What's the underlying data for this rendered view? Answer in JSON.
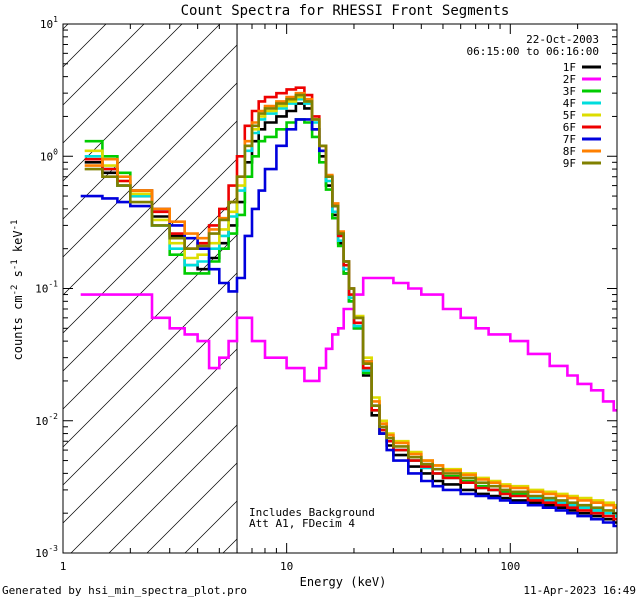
{
  "chart_data": {
    "type": "line",
    "title": "Count Spectra for RHESSI Front Segments",
    "xlabel": "Energy (keV)",
    "ylabel_parts": {
      "base": "counts cm",
      "sup1": "-2",
      "mid": " s",
      "sup2": "-1",
      "unit": " keV",
      "sup3": "-1"
    },
    "x_scale": "log",
    "y_scale": "log",
    "xlim": [
      1,
      300
    ],
    "ylim": [
      0.001,
      10
    ],
    "x_ticks": [
      {
        "value": 1,
        "label": "1"
      },
      {
        "value": 10,
        "label": "10"
      },
      {
        "value": 100,
        "label": "100"
      }
    ],
    "y_ticks": [
      {
        "value": 0.001,
        "base": "10",
        "exp": "-3"
      },
      {
        "value": 0.01,
        "base": "10",
        "exp": "-2"
      },
      {
        "value": 0.1,
        "base": "10",
        "exp": "-1"
      },
      {
        "value": 1,
        "base": "10",
        "exp": "0"
      },
      {
        "value": 10,
        "base": "10",
        "exp": "1"
      }
    ],
    "legend": {
      "placement": "top-right",
      "date": "22-Oct-2003",
      "time_range": "06:15:00 to 06:16:00"
    },
    "hatched_region_xmax": 6,
    "annotations": [
      "Includes Background",
      "Att A1, FDecim 4"
    ],
    "footer_left": "Generated by hsi_min_spectra_plot.pro",
    "footer_right": "11-Apr-2023 16:49",
    "series": [
      {
        "name": "1F",
        "color": "#000000",
        "x": [
          1.25,
          1.5,
          1.75,
          2,
          2.5,
          3,
          3.5,
          4,
          4.5,
          5,
          5.5,
          6,
          6.5,
          7,
          7.5,
          8,
          9,
          10,
          11,
          12,
          13,
          14,
          15,
          16,
          17,
          18,
          19,
          20,
          22,
          24,
          26,
          28,
          30,
          35,
          40,
          45,
          50,
          60,
          70,
          80,
          90,
          100,
          120,
          140,
          160,
          180,
          200,
          230,
          260,
          290
        ],
        "y": [
          0.9,
          0.75,
          0.6,
          0.5,
          0.35,
          0.25,
          0.15,
          0.14,
          0.17,
          0.22,
          0.3,
          0.45,
          0.9,
          1.3,
          1.6,
          1.8,
          2.0,
          2.2,
          2.5,
          2.3,
          1.6,
          1.0,
          0.6,
          0.36,
          0.22,
          0.13,
          0.08,
          0.05,
          0.022,
          0.011,
          0.008,
          0.0065,
          0.0055,
          0.0045,
          0.004,
          0.0035,
          0.0033,
          0.003,
          0.0028,
          0.0027,
          0.0026,
          0.0025,
          0.0024,
          0.0023,
          0.0022,
          0.0021,
          0.002,
          0.0019,
          0.0018,
          0.0017
        ]
      },
      {
        "name": "2F",
        "color": "#ff00ff",
        "x": [
          1.2,
          1.5,
          2,
          2.5,
          3,
          3.5,
          4,
          4.5,
          5,
          5.5,
          6,
          7,
          8,
          10,
          12,
          13,
          14,
          15,
          16,
          17,
          18,
          20,
          22,
          25,
          30,
          35,
          40,
          50,
          60,
          70,
          80,
          100,
          120,
          150,
          180,
          200,
          230,
          260,
          290
        ],
        "y": [
          0.09,
          0.09,
          0.09,
          0.06,
          0.05,
          0.045,
          0.04,
          0.025,
          0.03,
          0.04,
          0.06,
          0.04,
          0.03,
          0.025,
          0.02,
          0.02,
          0.025,
          0.035,
          0.045,
          0.05,
          0.07,
          0.09,
          0.12,
          0.12,
          0.11,
          0.1,
          0.09,
          0.07,
          0.06,
          0.05,
          0.045,
          0.04,
          0.032,
          0.026,
          0.022,
          0.019,
          0.017,
          0.014,
          0.012
        ]
      },
      {
        "name": "3F",
        "color": "#00cc00",
        "x": [
          1.25,
          1.5,
          1.75,
          2,
          2.5,
          3,
          3.5,
          4,
          4.5,
          5,
          5.5,
          6,
          6.5,
          7,
          7.5,
          8,
          9,
          10,
          11,
          12,
          13,
          14,
          15,
          16,
          17,
          18,
          19,
          20,
          22,
          24,
          26,
          28,
          30,
          35,
          40,
          45,
          50,
          60,
          70,
          80,
          90,
          100,
          120,
          140,
          160,
          180,
          200,
          230,
          260,
          290
        ],
        "y": [
          1.3,
          1.0,
          0.75,
          0.55,
          0.3,
          0.18,
          0.13,
          0.13,
          0.16,
          0.2,
          0.26,
          0.36,
          0.7,
          1.0,
          1.3,
          1.4,
          1.6,
          1.8,
          1.9,
          1.8,
          1.4,
          0.9,
          0.56,
          0.34,
          0.21,
          0.13,
          0.08,
          0.05,
          0.023,
          0.012,
          0.0085,
          0.007,
          0.006,
          0.005,
          0.0045,
          0.004,
          0.0038,
          0.0035,
          0.0032,
          0.003,
          0.0029,
          0.0028,
          0.0026,
          0.0025,
          0.0024,
          0.0023,
          0.0022,
          0.0021,
          0.002,
          0.0019
        ]
      },
      {
        "name": "4F",
        "color": "#00dddd",
        "x": [
          1.25,
          1.5,
          1.75,
          2,
          2.5,
          3,
          3.5,
          4,
          4.5,
          5,
          5.5,
          6,
          6.5,
          7,
          7.5,
          8,
          9,
          10,
          11,
          12,
          13,
          14,
          15,
          16,
          17,
          18,
          19,
          20,
          22,
          24,
          26,
          28,
          30,
          35,
          40,
          45,
          50,
          60,
          70,
          80,
          90,
          100,
          120,
          140,
          160,
          180,
          200,
          230,
          260,
          290
        ],
        "y": [
          1.0,
          0.8,
          0.6,
          0.5,
          0.3,
          0.2,
          0.15,
          0.16,
          0.2,
          0.25,
          0.35,
          0.55,
          1.1,
          1.5,
          1.9,
          2.1,
          2.3,
          2.5,
          2.7,
          2.5,
          1.8,
          1.1,
          0.65,
          0.38,
          0.23,
          0.14,
          0.085,
          0.052,
          0.024,
          0.012,
          0.0085,
          0.007,
          0.006,
          0.005,
          0.0044,
          0.004,
          0.0037,
          0.0034,
          0.0031,
          0.003,
          0.0028,
          0.0027,
          0.0026,
          0.0025,
          0.0024,
          0.0023,
          0.0022,
          0.0021,
          0.002,
          0.0019
        ]
      },
      {
        "name": "5F",
        "color": "#dddd00",
        "x": [
          1.25,
          1.5,
          1.75,
          2,
          2.5,
          3,
          3.5,
          4,
          4.5,
          5,
          5.5,
          6,
          6.5,
          7,
          7.5,
          8,
          9,
          10,
          11,
          12,
          13,
          14,
          15,
          16,
          17,
          18,
          19,
          20,
          22,
          24,
          26,
          28,
          30,
          35,
          40,
          45,
          50,
          60,
          70,
          80,
          90,
          100,
          120,
          140,
          160,
          180,
          200,
          230,
          260,
          290
        ],
        "y": [
          1.1,
          0.85,
          0.65,
          0.52,
          0.33,
          0.22,
          0.17,
          0.18,
          0.22,
          0.28,
          0.38,
          0.6,
          1.2,
          1.6,
          2.0,
          2.2,
          2.4,
          2.6,
          2.8,
          2.6,
          1.9,
          1.2,
          0.7,
          0.42,
          0.26,
          0.16,
          0.1,
          0.062,
          0.03,
          0.015,
          0.01,
          0.008,
          0.007,
          0.0058,
          0.005,
          0.0046,
          0.0043,
          0.004,
          0.0037,
          0.0035,
          0.0033,
          0.0032,
          0.003,
          0.0029,
          0.0028,
          0.0027,
          0.0026,
          0.0025,
          0.0024,
          0.0023
        ]
      },
      {
        "name": "6F",
        "color": "#ee0000",
        "x": [
          1.25,
          1.5,
          1.75,
          2,
          2.5,
          3,
          3.5,
          4,
          4.5,
          5,
          5.5,
          6,
          6.5,
          7,
          7.5,
          8,
          9,
          10,
          11,
          12,
          13,
          14,
          15,
          16,
          17,
          18,
          19,
          20,
          22,
          24,
          26,
          28,
          30,
          35,
          40,
          45,
          50,
          60,
          70,
          80,
          90,
          100,
          120,
          140,
          160,
          180,
          200,
          230,
          260,
          290
        ],
        "y": [
          0.95,
          0.8,
          0.65,
          0.55,
          0.38,
          0.26,
          0.2,
          0.22,
          0.3,
          0.4,
          0.6,
          1.0,
          1.7,
          2.2,
          2.6,
          2.8,
          3.0,
          3.2,
          3.3,
          2.9,
          2.0,
          1.2,
          0.7,
          0.42,
          0.25,
          0.15,
          0.09,
          0.055,
          0.025,
          0.012,
          0.0085,
          0.007,
          0.006,
          0.005,
          0.0045,
          0.004,
          0.0037,
          0.0034,
          0.0031,
          0.003,
          0.0028,
          0.0027,
          0.0025,
          0.0024,
          0.0023,
          0.0022,
          0.0021,
          0.002,
          0.0019,
          0.0018
        ]
      },
      {
        "name": "7F",
        "color": "#0000dd",
        "x": [
          1.2,
          1.5,
          1.75,
          2,
          2.5,
          3,
          3.5,
          4,
          4.5,
          5,
          5.5,
          6,
          6.5,
          7,
          7.5,
          8,
          9,
          10,
          11,
          12,
          13,
          14,
          15,
          16,
          17,
          18,
          19,
          20,
          22,
          24,
          26,
          28,
          30,
          35,
          40,
          45,
          50,
          60,
          70,
          80,
          90,
          100,
          120,
          140,
          160,
          180,
          200,
          230,
          260,
          290
        ],
        "y": [
          0.5,
          0.48,
          0.45,
          0.42,
          0.4,
          0.3,
          0.24,
          0.2,
          0.14,
          0.11,
          0.095,
          0.12,
          0.25,
          0.4,
          0.55,
          0.8,
          1.2,
          1.6,
          1.9,
          1.9,
          1.6,
          1.1,
          0.7,
          0.42,
          0.26,
          0.16,
          0.1,
          0.06,
          0.028,
          0.013,
          0.008,
          0.006,
          0.005,
          0.004,
          0.0035,
          0.0032,
          0.003,
          0.0028,
          0.0027,
          0.0026,
          0.0025,
          0.0024,
          0.0023,
          0.0022,
          0.0021,
          0.002,
          0.0019,
          0.0018,
          0.0017,
          0.0016
        ]
      },
      {
        "name": "8F",
        "color": "#ff8000",
        "x": [
          1.25,
          1.5,
          1.75,
          2,
          2.5,
          3,
          3.5,
          4,
          4.5,
          5,
          5.5,
          6,
          6.5,
          7,
          7.5,
          8,
          9,
          10,
          11,
          12,
          13,
          14,
          15,
          16,
          17,
          18,
          19,
          20,
          22,
          24,
          26,
          28,
          30,
          35,
          40,
          45,
          50,
          60,
          70,
          80,
          90,
          100,
          120,
          140,
          160,
          180,
          200,
          230,
          260,
          290
        ],
        "y": [
          0.85,
          0.95,
          0.7,
          0.55,
          0.4,
          0.32,
          0.26,
          0.24,
          0.28,
          0.34,
          0.45,
          0.7,
          1.3,
          1.8,
          2.2,
          2.4,
          2.6,
          2.8,
          3.0,
          2.7,
          1.9,
          1.2,
          0.72,
          0.44,
          0.27,
          0.16,
          0.1,
          0.06,
          0.028,
          0.014,
          0.0095,
          0.0078,
          0.0068,
          0.0056,
          0.005,
          0.0046,
          0.0042,
          0.0039,
          0.0036,
          0.0034,
          0.0032,
          0.0031,
          0.0029,
          0.0028,
          0.0027,
          0.0026,
          0.0025,
          0.0024,
          0.0023,
          0.0022
        ]
      },
      {
        "name": "9F",
        "color": "#808000",
        "x": [
          1.25,
          1.5,
          1.75,
          2,
          2.5,
          3,
          3.5,
          4,
          4.5,
          5,
          5.5,
          6,
          6.5,
          7,
          7.5,
          8,
          9,
          10,
          11,
          12,
          13,
          14,
          15,
          16,
          17,
          18,
          19,
          20,
          22,
          24,
          26,
          28,
          30,
          35,
          40,
          45,
          50,
          60,
          70,
          80,
          90,
          100,
          120,
          140,
          160,
          180,
          200,
          230,
          260,
          290
        ],
        "y": [
          0.8,
          0.7,
          0.6,
          0.45,
          0.3,
          0.24,
          0.2,
          0.21,
          0.26,
          0.33,
          0.45,
          0.7,
          1.2,
          1.7,
          2.1,
          2.3,
          2.5,
          2.7,
          2.9,
          2.6,
          1.9,
          1.2,
          0.7,
          0.42,
          0.26,
          0.16,
          0.1,
          0.06,
          0.027,
          0.013,
          0.009,
          0.0074,
          0.0064,
          0.0053,
          0.0047,
          0.0043,
          0.004,
          0.0037,
          0.0034,
          0.0032,
          0.003,
          0.0029,
          0.0027,
          0.0026,
          0.0025,
          0.0024,
          0.0023,
          0.0022,
          0.0021,
          0.002
        ]
      }
    ]
  }
}
